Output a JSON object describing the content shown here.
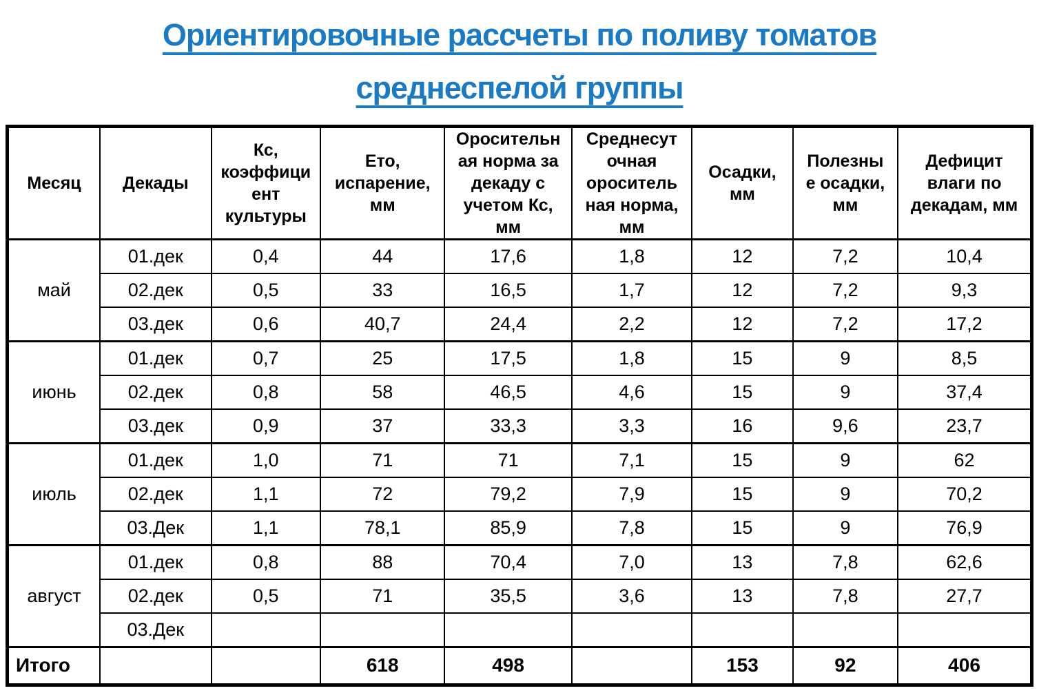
{
  "title": {
    "line1": "Ориентировочные рассчеты по поливу томатов",
    "line2": "среднеспелой группы",
    "color": "#1b7ac4"
  },
  "table": {
    "columns": [
      {
        "label": "Месяц"
      },
      {
        "label": "Декады"
      },
      {
        "label": "Кс,\nкоэффици\nент\nкультуры"
      },
      {
        "label": "Ето,\nиспарение,\nмм"
      },
      {
        "label": "Оросительн\nая норма за\nдекаду с\nучетом Кс,\nмм"
      },
      {
        "label": "Среднесут\nочная\nороситель\nная норма,\nмм"
      },
      {
        "label": "Осадки,\nмм"
      },
      {
        "label": "Полезны\nе осадки,\nмм"
      },
      {
        "label": "Дефицит\nвлаги по\nдекадам, мм"
      }
    ],
    "groups": [
      {
        "month": "май",
        "rows": [
          {
            "decade": "01.дек",
            "values": [
              "0,4",
              "44",
              "17,6",
              "1,8",
              "12",
              "7,2",
              "10,4"
            ]
          },
          {
            "decade": "02.дек",
            "values": [
              "0,5",
              "33",
              "16,5",
              "1,7",
              "12",
              "7,2",
              "9,3"
            ]
          },
          {
            "decade": "03.дек",
            "values": [
              "0,6",
              "40,7",
              "24,4",
              "2,2",
              "12",
              "7,2",
              "17,2"
            ]
          }
        ]
      },
      {
        "month": "июнь",
        "rows": [
          {
            "decade": "01.дек",
            "values": [
              "0,7",
              "25",
              "17,5",
              "1,8",
              "15",
              "9",
              "8,5"
            ]
          },
          {
            "decade": "02.дек",
            "values": [
              "0,8",
              "58",
              "46,5",
              "4,6",
              "15",
              "9",
              "37,4"
            ]
          },
          {
            "decade": "03.дек",
            "values": [
              "0,9",
              "37",
              "33,3",
              "3,3",
              "16",
              "9,6",
              "23,7"
            ]
          }
        ]
      },
      {
        "month": "июль",
        "rows": [
          {
            "decade": "01.дек",
            "values": [
              "1,0",
              "71",
              "71",
              "7,1",
              "15",
              "9",
              "62"
            ]
          },
          {
            "decade": "02.дек",
            "values": [
              "1,1",
              "72",
              "79,2",
              "7,9",
              "15",
              "9",
              "70,2"
            ]
          },
          {
            "decade": "03.Дек",
            "values": [
              "1,1",
              "78,1",
              "85,9",
              "7,8",
              "15",
              "9",
              "76,9"
            ]
          }
        ]
      },
      {
        "month": "август",
        "rows": [
          {
            "decade": "01.дек",
            "values": [
              "0,8",
              "88",
              "70,4",
              "7,0",
              "13",
              "7,8",
              "62,6"
            ]
          },
          {
            "decade": "02.дек",
            "values": [
              "0,5",
              "71",
              "35,5",
              "3,6",
              "13",
              "7,8",
              "27,7"
            ]
          },
          {
            "decade": "03.Дек",
            "values": [
              "",
              "",
              "",
              "",
              "",
              "",
              ""
            ]
          }
        ]
      }
    ],
    "total": {
      "label": "Итого",
      "decade": "",
      "values": [
        "",
        "618",
        "498",
        "",
        "153",
        "92",
        "406"
      ]
    }
  }
}
